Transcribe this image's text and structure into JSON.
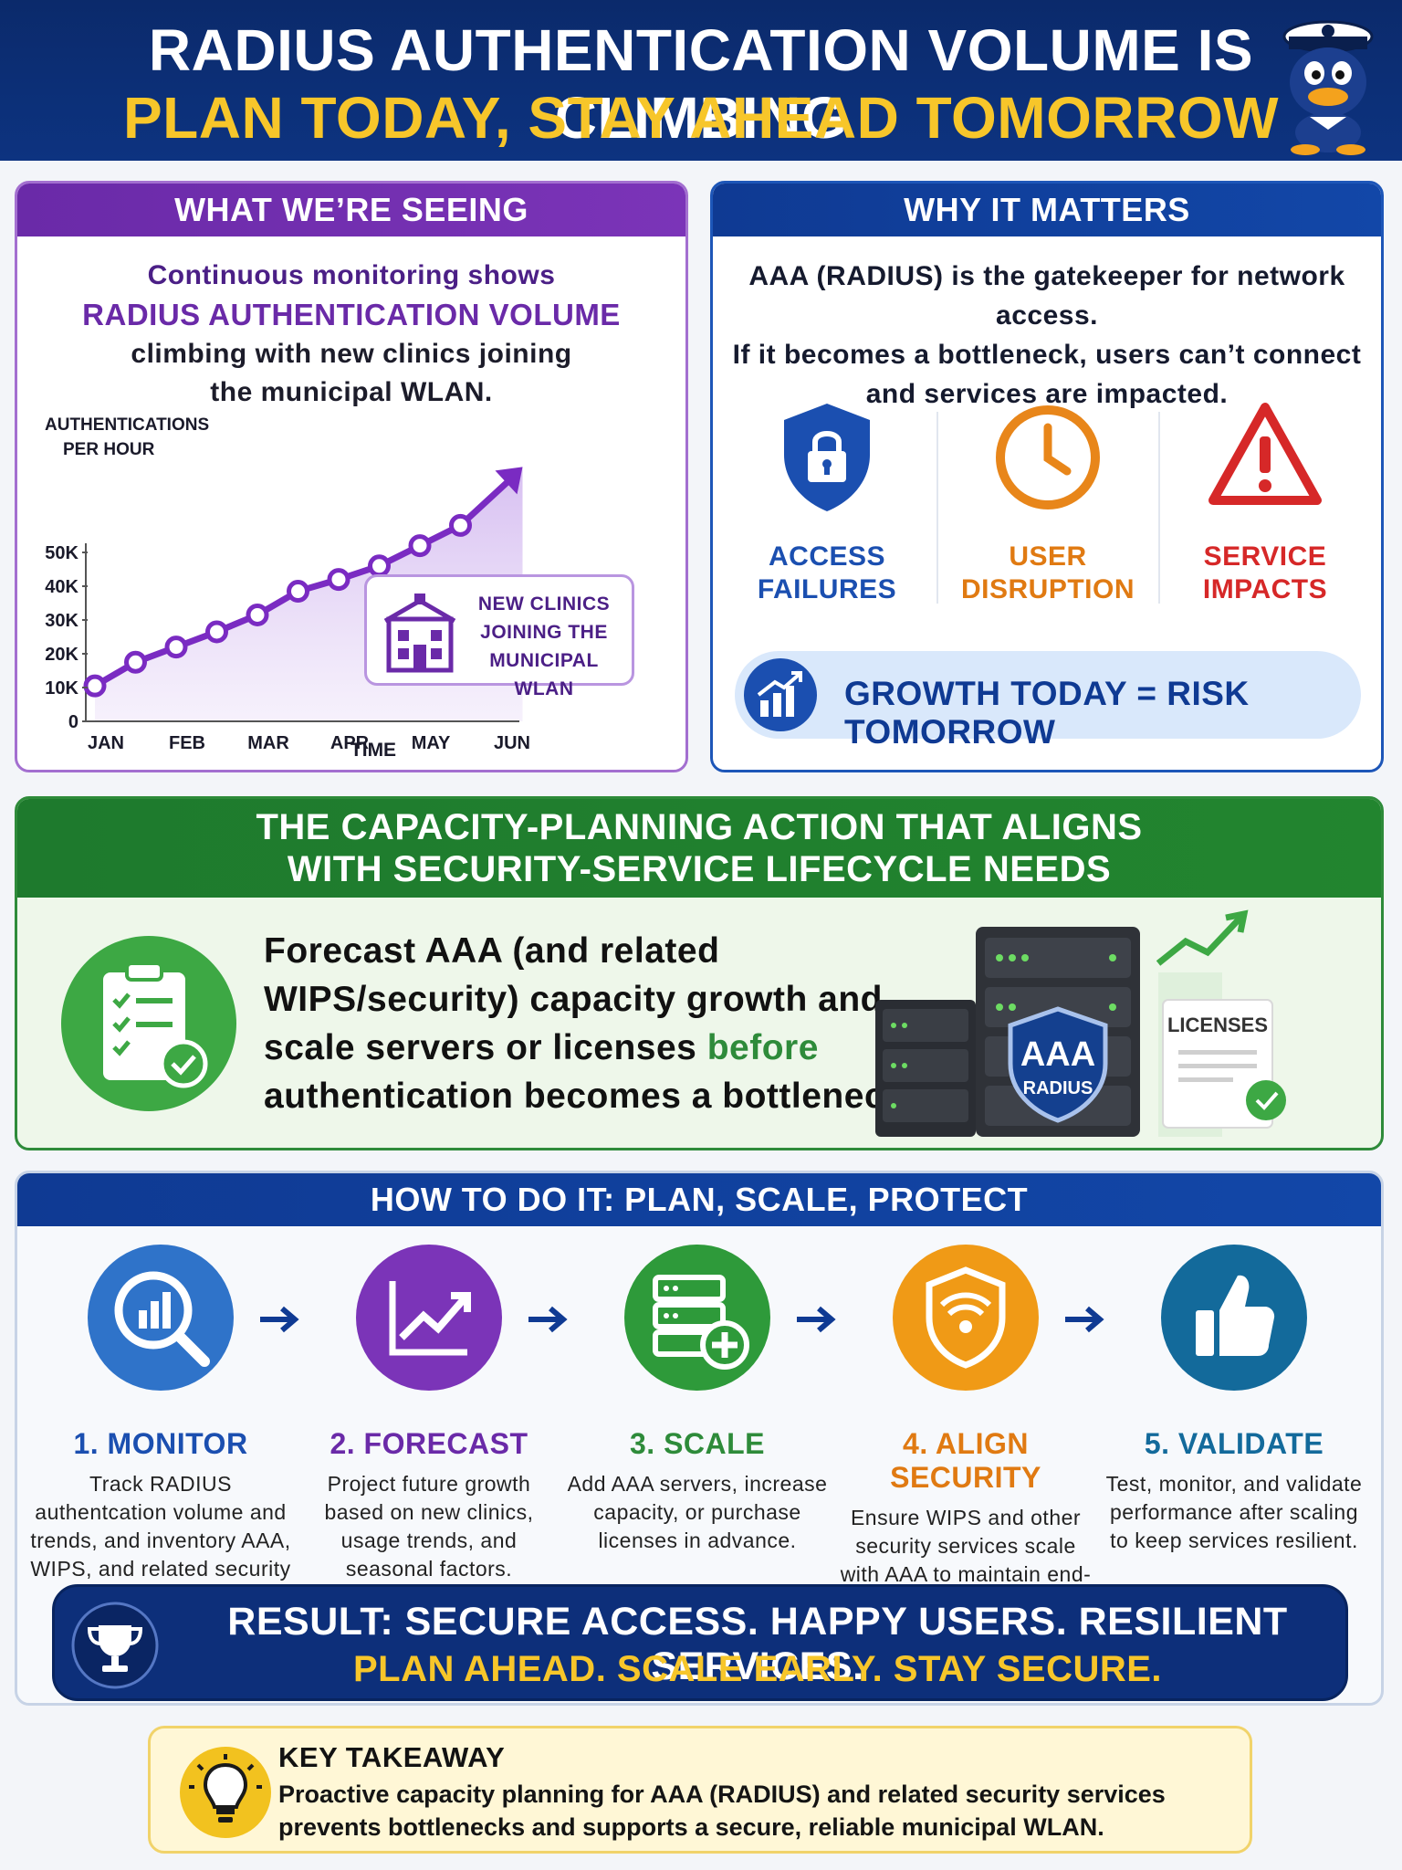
{
  "header": {
    "title_line1": "RADIUS AUTHENTICATION VOLUME IS CLIMBING",
    "title_line2": "PLAN TODAY, STAY AHEAD TOMORROW",
    "mascot_icon": "sailor-duck-mascot-icon"
  },
  "seeing": {
    "heading": "WHAT WE’RE SEEING",
    "line1": "Continuous monitoring shows",
    "line2": "RADIUS AUTHENTICATION VOLUME",
    "line3": "climbing with new clinics joining",
    "line4": "the municipal WLAN.",
    "callout_line1": "NEW CLINICS",
    "callout_line2": "JOINING THE",
    "callout_line3": "MUNICIPAL WLAN",
    "callout_icon": "clinic-building-icon"
  },
  "chart_data": {
    "type": "line",
    "ylabel": "AUTHENTICATIONS PER HOUR",
    "ylabel_line1": "AUTHENTICATIONS",
    "ylabel_line2": "PER HOUR",
    "xlabel": "TIME",
    "categories": [
      "JAN",
      "FEB",
      "MAR",
      "APR",
      "MAY",
      "JUN"
    ],
    "y_ticks": [
      "0",
      "10K",
      "20K",
      "30K",
      "40K",
      "50K"
    ],
    "ylim": [
      0,
      50000
    ],
    "x": [
      0,
      0.5,
      1,
      1.5,
      2,
      2.5,
      3,
      3.5,
      4,
      4.5
    ],
    "values": [
      10500,
      17500,
      22000,
      26500,
      31500,
      38500,
      42000,
      46000,
      52000,
      58000
    ],
    "color": "#7a2bc2",
    "grid": false,
    "trend_arrow": true
  },
  "matters": {
    "heading": "WHY IT MATTERS",
    "line1": "AAA (RADIUS) is the gatekeeper for network access.",
    "line2": "If it becomes a bottleneck, users can’t connect",
    "line3": "and services are impacted.",
    "risks": [
      {
        "line1": "ACCESS",
        "line2": "FAILURES",
        "icon": "lock-shield-icon",
        "color": "#1b4fb0"
      },
      {
        "line1": "USER",
        "line2": "DISRUPTION",
        "icon": "clock-icon",
        "color": "#e8861a"
      },
      {
        "line1": "SERVICE",
        "line2": "IMPACTS",
        "icon": "warning-triangle-icon",
        "color": "#d62828"
      }
    ],
    "growth_text": "GROWTH TODAY = RISK TOMORROW",
    "growth_icon": "growth-chart-icon"
  },
  "action": {
    "heading_line1": "THE CAPACITY-PLANNING ACTION THAT ALIGNS",
    "heading_line2": "WITH SECURITY-SERVICE LIFECYCLE NEEDS",
    "text_part1": "Forecast AAA (and related WIPS/security) capacity growth and scale servers or licenses ",
    "text_before": "before",
    "text_part2": " authentication becomes a bottleneck.",
    "shield_title": "AAA",
    "shield_sub": "RADIUS",
    "license_label": "LICENSES",
    "icon": "checklist-icon"
  },
  "howto": {
    "heading": "HOW TO DO IT: PLAN, SCALE, PROTECT",
    "steps": [
      {
        "title": "1. MONITOR",
        "desc": "Track RADIUS authentcation volume and trends, and inventory AAA, WIPS, and related security capacity.",
        "icon": "magnifier-chart-icon",
        "color": "#2f73c9"
      },
      {
        "title": "2. FORECAST",
        "desc": "Project future growth based on new clinics, usage trends, and seasonal factors.",
        "icon": "trend-line-icon",
        "color": "#7b34b8"
      },
      {
        "title": "3. SCALE",
        "desc": "Add AAA servers, increase capacity, or purchase licenses in advance.",
        "icon": "server-add-icon",
        "color": "#2e9a3a"
      },
      {
        "title": "4. ALIGN SECURITY",
        "desc": "Ensure WIPS and other security services scale with AAA to maintain end-to-end protection.",
        "icon": "wifi-shield-icon",
        "color": "#f09a16"
      },
      {
        "title": "5. VALIDATE",
        "desc": "Test, monitor, and validate performance after scaling to keep services resilient.",
        "icon": "thumbs-up-icon",
        "color": "#136a9b"
      }
    ],
    "result_line1": "RESULT: SECURE ACCESS. HAPPY USERS. RESILIENT SERVICES.",
    "result_line2": "PLAN AHEAD. SCALE EARLY. STAY SECURE.",
    "result_icon": "trophy-icon"
  },
  "takeaway": {
    "title": "KEY TAKEAWAY",
    "body": "Proactive capacity planning for AAA (RADIUS) and related security services prevents bottlenecks and supports a secure, reliable municipal WLAN.",
    "icon": "lightbulb-icon"
  }
}
